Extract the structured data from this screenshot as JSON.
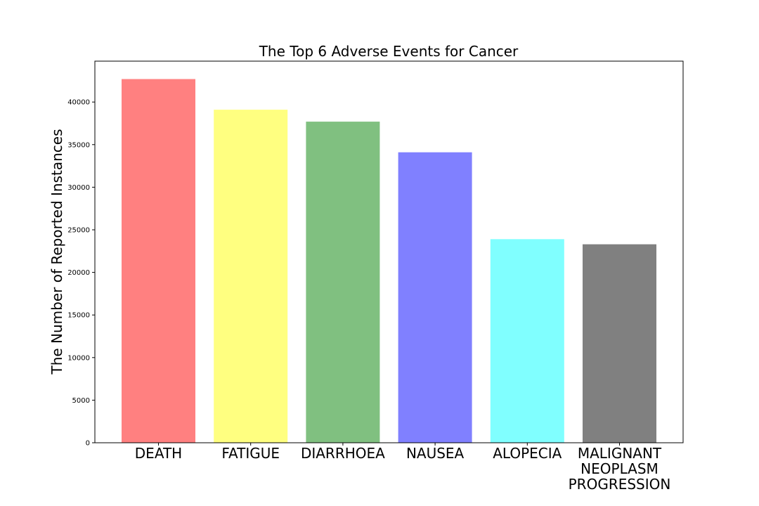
{
  "chart_data": {
    "type": "bar",
    "title": "The Top 6 Adverse Events for Cancer",
    "xlabel": "",
    "ylabel": "The Number of Reported Instances",
    "categories": [
      "DEATH",
      "FATIGUE",
      "DIARRHOEA",
      "NAUSEA",
      "ALOPECIA",
      "MALIGNANT NEOPLASM PROGRESSION"
    ],
    "category_lines": [
      [
        "DEATH"
      ],
      [
        "FATIGUE"
      ],
      [
        "DIARRHOEA"
      ],
      [
        "NAUSEA"
      ],
      [
        "ALOPECIA"
      ],
      [
        "MALIGNANT",
        "NEOPLASM",
        "PROGRESSION"
      ]
    ],
    "values": [
      42700,
      39100,
      37700,
      34100,
      23900,
      23300
    ],
    "colors": [
      "#ff8080",
      "#ffff80",
      "#80c080",
      "#8080ff",
      "#80ffff",
      "#808080"
    ],
    "ylim": [
      0,
      44800
    ],
    "yticks": [
      0,
      5000,
      10000,
      15000,
      20000,
      25000,
      30000,
      35000,
      40000
    ],
    "grid": false,
    "legend": "none"
  }
}
